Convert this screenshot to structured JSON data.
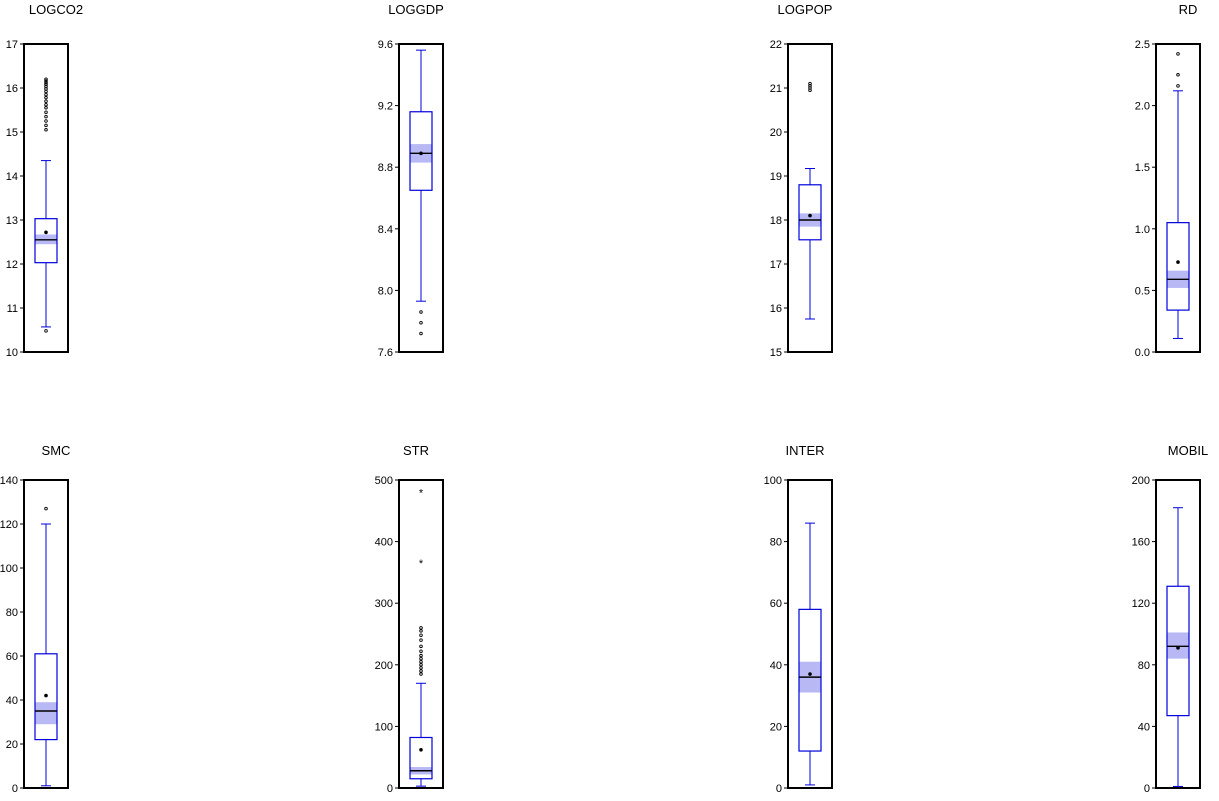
{
  "colors": {
    "box": "#0000dd",
    "notch_fill": "#b8b8f4",
    "median": "#000000",
    "frame": "#000000",
    "outlier": "#000000",
    "background": "#ffffff"
  },
  "chart_data": [
    {
      "type": "boxplot",
      "title": "LOGCO2",
      "ylim": [
        10,
        17
      ],
      "yticks": [
        "10",
        "11",
        "12",
        "13",
        "14",
        "15",
        "16",
        "17"
      ],
      "whisker_low": 10.57,
      "q1": 12.03,
      "median": 12.55,
      "q3": 13.03,
      "whisker_high": 14.35,
      "mean": 12.72,
      "median_ci": [
        12.45,
        12.67
      ],
      "outliers": [
        10.48,
        15.05,
        15.15,
        15.25,
        15.35,
        15.45,
        15.55,
        15.62,
        15.7,
        15.78,
        15.85,
        15.92,
        15.98,
        16.03,
        16.08,
        16.12,
        16.16,
        16.2
      ],
      "outlier_marker": "o"
    },
    {
      "type": "boxplot",
      "title": "LOGGDP",
      "ylim": [
        7.6,
        9.6
      ],
      "yticks": [
        "7.6",
        "8.0",
        "8.4",
        "8.8",
        "9.2",
        "9.6"
      ],
      "whisker_low": 7.93,
      "q1": 8.65,
      "median": 8.89,
      "q3": 9.16,
      "whisker_high": 9.56,
      "mean": 8.89,
      "median_ci": [
        8.83,
        8.95
      ],
      "outliers": [
        7.72,
        7.79,
        7.86
      ],
      "outlier_marker": "o"
    },
    {
      "type": "boxplot",
      "title": "LOGPOP",
      "ylim": [
        15,
        22
      ],
      "yticks": [
        "15",
        "16",
        "17",
        "18",
        "19",
        "20",
        "21",
        "22"
      ],
      "whisker_low": 15.75,
      "q1": 17.55,
      "median": 18.0,
      "q3": 18.8,
      "whisker_high": 19.17,
      "mean": 18.1,
      "median_ci": [
        17.85,
        18.15
      ],
      "outliers": [
        20.95,
        21.0,
        21.05,
        21.1
      ],
      "outlier_marker": "o"
    },
    {
      "type": "boxplot",
      "title": "RD",
      "ylim": [
        0.0,
        2.5
      ],
      "yticks": [
        "0.0",
        "0.5",
        "1.0",
        "1.5",
        "2.0",
        "2.5"
      ],
      "whisker_low": 0.11,
      "q1": 0.34,
      "median": 0.59,
      "q3": 1.05,
      "whisker_high": 2.12,
      "mean": 0.73,
      "median_ci": [
        0.52,
        0.66
      ],
      "outliers": [
        2.16,
        2.25,
        2.42
      ],
      "outlier_marker": "o"
    },
    {
      "type": "boxplot",
      "title": "SMC",
      "ylim": [
        0,
        140
      ],
      "yticks": [
        "0",
        "20",
        "40",
        "60",
        "80",
        "100",
        "120",
        "140"
      ],
      "whisker_low": 1,
      "q1": 22,
      "median": 35,
      "q3": 61,
      "whisker_high": 120,
      "mean": 42,
      "median_ci": [
        29,
        39
      ],
      "outliers": [
        127
      ],
      "outlier_marker": "o"
    },
    {
      "type": "boxplot",
      "title": "STR",
      "ylim": [
        0,
        500
      ],
      "yticks": [
        "0",
        "100",
        "200",
        "300",
        "400",
        "500"
      ],
      "whisker_low": 3,
      "q1": 15,
      "median": 28,
      "q3": 82,
      "whisker_high": 170,
      "mean": 62,
      "median_ci": [
        22,
        34
      ],
      "outliers": [
        185,
        190,
        195,
        200,
        205,
        210,
        215,
        222,
        230,
        240,
        248,
        255,
        260
      ],
      "extreme_outliers": [
        365,
        480
      ],
      "outlier_marker": "o",
      "extreme_marker": "*"
    },
    {
      "type": "boxplot",
      "title": "INTER",
      "ylim": [
        0,
        100
      ],
      "yticks": [
        "0",
        "20",
        "40",
        "60",
        "80",
        "100"
      ],
      "whisker_low": 1,
      "q1": 12,
      "median": 36,
      "q3": 58,
      "whisker_high": 86,
      "mean": 37,
      "median_ci": [
        31,
        41
      ],
      "outliers": [],
      "outlier_marker": "o"
    },
    {
      "type": "boxplot",
      "title": "MOBIL",
      "ylim": [
        0,
        200
      ],
      "yticks": [
        "0",
        "40",
        "80",
        "120",
        "160",
        "200"
      ],
      "whisker_low": 1,
      "q1": 47,
      "median": 92,
      "q3": 131,
      "whisker_high": 182,
      "mean": 91,
      "median_ci": [
        84,
        101
      ],
      "outliers": [],
      "outlier_marker": "o"
    }
  ]
}
